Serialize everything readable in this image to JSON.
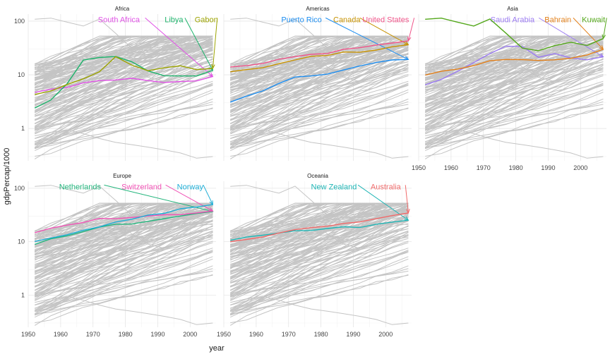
{
  "chart_data": {
    "type": "line",
    "xlabel": "year",
    "ylabel": "gdpPercap/1000",
    "y_scale": "log10",
    "ylim": [
      0.25,
      135
    ],
    "xlim": [
      1950,
      2008
    ],
    "x_ticks": [
      1950,
      1960,
      1970,
      1980,
      1990,
      2000
    ],
    "y_ticks": [
      1,
      10,
      100
    ],
    "x_tick_labels": [
      "1950",
      "1960",
      "1970",
      "1980",
      "1990",
      "2000"
    ],
    "y_tick_labels": [
      "1",
      "10",
      "100"
    ],
    "background_series_color": "#c4c4c4",
    "legend": "none",
    "facets": [
      {
        "name": "Africa",
        "highlighted": [
          {
            "name": "South Africa",
            "color": "#e052e6",
            "label_x": 1978,
            "label_y": 108,
            "x": [
              1952,
              1957,
              1962,
              1967,
              1972,
              1977,
              1982,
              1987,
              1992,
              1997,
              2002,
              2007
            ],
            "y": [
              4.7,
              5.4,
              5.8,
              7.1,
              7.8,
              8.0,
              8.6,
              7.8,
              7.2,
              7.5,
              7.7,
              9.3
            ]
          },
          {
            "name": "Libya",
            "color": "#1db36b",
            "label_x": 1995,
            "label_y": 108,
            "x": [
              1952,
              1957,
              1962,
              1967,
              1972,
              1977,
              1982,
              1987,
              1992,
              1997,
              2002,
              2007
            ],
            "y": [
              2.4,
              3.4,
              6.8,
              18.8,
              21.0,
              21.9,
              17.4,
              11.8,
              9.6,
              9.5,
              9.5,
              12.1
            ]
          },
          {
            "name": "Gabon",
            "color": "#9ca300",
            "label_x": 2005,
            "label_y": 108,
            "x": [
              1952,
              1957,
              1962,
              1967,
              1972,
              1977,
              1982,
              1987,
              1992,
              1997,
              2002,
              2007
            ],
            "y": [
              4.3,
              5.0,
              6.6,
              8.4,
              11.4,
              21.7,
              15.1,
              11.9,
              13.5,
              14.7,
              12.5,
              13.2
            ]
          }
        ]
      },
      {
        "name": "Americas",
        "highlighted": [
          {
            "name": "Puerto Rico",
            "color": "#1e8ef0",
            "label_x": 1974,
            "label_y": 108,
            "x": [
              1952,
              1957,
              1962,
              1967,
              1972,
              1977,
              1982,
              1987,
              1992,
              1997,
              2002,
              2007
            ],
            "y": [
              3.1,
              4.0,
              5.0,
              6.9,
              9.1,
              9.5,
              10.3,
              12.3,
              14.6,
              16.9,
              18.9,
              19.3
            ]
          },
          {
            "name": "Canada",
            "color": "#c79200",
            "label_x": 1988,
            "label_y": 108,
            "x": [
              1952,
              1957,
              1962,
              1967,
              1972,
              1977,
              1982,
              1987,
              1992,
              1997,
              2002,
              2007
            ],
            "y": [
              11.4,
              12.5,
              13.5,
              16.1,
              18.9,
              22.1,
              22.9,
              26.6,
              26.3,
              28.9,
              33.3,
              36.3
            ]
          },
          {
            "name": "United States",
            "color": "#f0558a",
            "label_x": 2000,
            "label_y": 108,
            "x": [
              1952,
              1957,
              1962,
              1967,
              1972,
              1977,
              1982,
              1987,
              1992,
              1997,
              2002,
              2007
            ],
            "y": [
              14.0,
              14.8,
              16.2,
              19.5,
              21.8,
              24.1,
              25.0,
              29.9,
              32.0,
              35.8,
              39.1,
              42.9
            ]
          }
        ]
      },
      {
        "name": "Asia",
        "highlighted": [
          {
            "name": "Saudi Arabia",
            "color": "#9b7bf2",
            "label_x": 1979,
            "label_y": 108,
            "x": [
              1952,
              1957,
              1962,
              1967,
              1972,
              1977,
              1982,
              1987,
              1992,
              1997,
              2002,
              2007
            ],
            "y": [
              6.5,
              8.2,
              11.6,
              16.9,
              24.8,
              34.2,
              33.7,
              21.2,
              24.8,
              20.6,
              19.0,
              21.7
            ]
          },
          {
            "name": "Bahrain",
            "color": "#e3801a",
            "label_x": 1993,
            "label_y": 108,
            "x": [
              1952,
              1957,
              1962,
              1967,
              1972,
              1977,
              1982,
              1987,
              1992,
              1997,
              2002,
              2007
            ],
            "y": [
              9.9,
              11.6,
              12.8,
              14.8,
              18.3,
              19.3,
              19.2,
              18.5,
              19.0,
              20.3,
              23.4,
              29.8
            ]
          },
          {
            "name": "Kuwait",
            "color": "#54a81b",
            "label_x": 2004,
            "label_y": 108,
            "x": [
              1952,
              1957,
              1962,
              1967,
              1972,
              1977,
              1982,
              1987,
              1992,
              1997,
              2002,
              2007
            ],
            "y": [
              108.4,
              113.5,
              95.5,
              80.9,
              109.3,
              59.3,
              31.4,
              28.1,
              34.9,
              40.3,
              35.1,
              47.3
            ]
          }
        ]
      },
      {
        "name": "Europe",
        "highlighted": [
          {
            "name": "Netherlands",
            "color": "#22b57c",
            "label_x": 1966,
            "label_y": 108,
            "x": [
              1952,
              1957,
              1962,
              1967,
              1972,
              1977,
              1982,
              1987,
              1992,
              1997,
              2002,
              2007
            ],
            "y": [
              8.9,
              11.3,
              12.8,
              15.4,
              18.8,
              21.2,
              21.4,
              24.0,
              27.0,
              30.2,
              33.7,
              36.8
            ]
          },
          {
            "name": "Switzerland",
            "color": "#f052b5",
            "label_x": 1985,
            "label_y": 108,
            "x": [
              1952,
              1957,
              1962,
              1967,
              1972,
              1977,
              1982,
              1987,
              1992,
              1997,
              2002,
              2007
            ],
            "y": [
              14.7,
              17.9,
              20.4,
              22.9,
              27.2,
              26.9,
              28.4,
              30.3,
              31.9,
              32.1,
              34.5,
              37.5
            ]
          },
          {
            "name": "Norway",
            "color": "#1eaed6",
            "label_x": 2000,
            "label_y": 108,
            "x": [
              1952,
              1957,
              1962,
              1967,
              1972,
              1977,
              1982,
              1987,
              1992,
              1997,
              2002,
              2007
            ],
            "y": [
              10.1,
              11.7,
              13.5,
              16.4,
              18.9,
              23.3,
              26.3,
              31.5,
              33.9,
              41.3,
              44.7,
              49.4
            ]
          }
        ]
      },
      {
        "name": "Oceania",
        "highlighted": [
          {
            "name": "New Zealand",
            "color": "#1eb5b5",
            "label_x": 1984,
            "label_y": 108,
            "x": [
              1952,
              1957,
              1962,
              1967,
              1972,
              1977,
              1982,
              1987,
              1992,
              1997,
              2002,
              2007
            ],
            "y": [
              10.6,
              12.2,
              13.2,
              14.5,
              16.0,
              16.2,
              17.6,
              19.0,
              18.4,
              21.1,
              23.2,
              25.2
            ]
          },
          {
            "name": "Australia",
            "color": "#f06a6a",
            "label_x": 2000,
            "label_y": 108,
            "x": [
              1952,
              1957,
              1962,
              1967,
              1972,
              1977,
              1982,
              1987,
              1992,
              1997,
              2002,
              2007
            ],
            "y": [
              10.0,
              11.0,
              12.2,
              14.5,
              16.8,
              18.3,
              19.5,
              21.9,
              23.4,
              26.9,
              30.7,
              34.4
            ]
          }
        ]
      }
    ]
  }
}
